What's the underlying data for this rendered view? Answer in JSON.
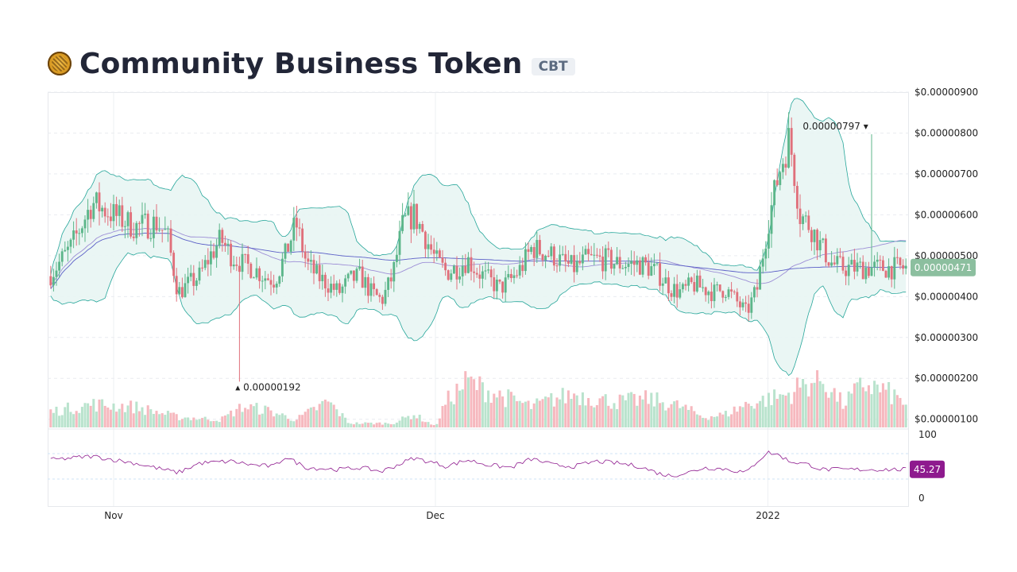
{
  "header": {
    "name": "Community Business Token",
    "symbol": "CBT",
    "logo_icon": "cbt-coin-logo-icon"
  },
  "colors": {
    "up": "#5cb68a",
    "down": "#e0707b",
    "band_line": "#26a69a",
    "band_fill": "#e8f5f3",
    "ma_long": "#5b5fc7",
    "ma_short": "#9d8fd6",
    "rsi_line": "#8e1a8e",
    "last_price_bg": "#8cbf9f",
    "rsi_badge_bg": "#8e1a8e"
  },
  "chart_data": {
    "type": "candlestick",
    "price_axis": {
      "ticks": [
        "$0.00000100",
        "$0.00000200",
        "$0.00000300",
        "$0.00000400",
        "$0.00000500",
        "$0.00000600",
        "$0.00000700",
        "$0.00000800",
        "$0.00000900"
      ],
      "tick_values": [
        1e-06,
        2e-06,
        3e-06,
        4e-06,
        5e-06,
        6e-06,
        7e-06,
        8e-06,
        9e-06
      ],
      "range": [
        8e-07,
        9e-06
      ]
    },
    "time_axis": {
      "ticks": [
        "Nov",
        "Dec",
        "2022"
      ],
      "tick_days": [
        7,
        37,
        68
      ],
      "range_days": [
        1,
        81
      ]
    },
    "last_price": "0.00000471",
    "last_price_value": 4.71e-06,
    "high_annotation": {
      "label": "0.00000797",
      "day": 77.5,
      "value": 7.97e-06
    },
    "low_annotation": {
      "label": "0.00000192",
      "day": 18.5,
      "value": 1.92e-06
    },
    "price_keypoints": [
      [
        1,
        4.5e-06
      ],
      [
        3,
        5.2e-06
      ],
      [
        5,
        6.3e-06
      ],
      [
        7,
        6e-06
      ],
      [
        9,
        5.7e-06
      ],
      [
        11,
        5.8e-06
      ],
      [
        12,
        5.5e-06
      ],
      [
        13,
        4.1e-06
      ],
      [
        14,
        4.3e-06
      ],
      [
        15,
        4.5e-06
      ],
      [
        16,
        5e-06
      ],
      [
        17,
        5.4e-06
      ],
      [
        18,
        5e-06
      ],
      [
        19,
        4.8e-06
      ],
      [
        20,
        4.7e-06
      ],
      [
        21,
        4.5e-06
      ],
      [
        22,
        4.4e-06
      ],
      [
        23,
        5e-06
      ],
      [
        24,
        5.8e-06
      ],
      [
        25,
        4.8e-06
      ],
      [
        26,
        4.5e-06
      ],
      [
        27,
        4.3e-06
      ],
      [
        28,
        4.1e-06
      ],
      [
        29,
        4.4e-06
      ],
      [
        30,
        4.5e-06
      ],
      [
        31,
        4.1e-06
      ],
      [
        32,
        3.9e-06
      ],
      [
        33,
        4.5e-06
      ],
      [
        34,
        5.8e-06
      ],
      [
        35,
        6e-06
      ],
      [
        36,
        5.5e-06
      ],
      [
        37,
        4.9e-06
      ],
      [
        38,
        4.6e-06
      ],
      [
        39,
        4.7e-06
      ],
      [
        40,
        4.9e-06
      ],
      [
        41,
        4.6e-06
      ],
      [
        42,
        4.4e-06
      ],
      [
        43,
        4.2e-06
      ],
      [
        44,
        4.4e-06
      ],
      [
        45,
        4.7e-06
      ],
      [
        46,
        5.2e-06
      ],
      [
        47,
        5.1e-06
      ],
      [
        48,
        5e-06
      ],
      [
        49,
        4.8e-06
      ],
      [
        50,
        4.7e-06
      ],
      [
        51,
        4.9e-06
      ],
      [
        52,
        4.9e-06
      ],
      [
        53,
        4.9e-06
      ],
      [
        54,
        4.8e-06
      ],
      [
        55,
        4.8e-06
      ],
      [
        56,
        4.8e-06
      ],
      [
        57,
        4.7e-06
      ],
      [
        58,
        4.5e-06
      ],
      [
        59,
        4.2e-06
      ],
      [
        60,
        4.1e-06
      ],
      [
        61,
        4.3e-06
      ],
      [
        62,
        4.2e-06
      ],
      [
        63,
        4.1e-06
      ],
      [
        64,
        4.2e-06
      ],
      [
        65,
        3.9e-06
      ],
      [
        66,
        3.6e-06
      ],
      [
        67,
        4.2e-06
      ],
      [
        68,
        5.8e-06
      ],
      [
        69,
        7e-06
      ],
      [
        70,
        7.9e-06
      ],
      [
        71,
        6e-06
      ],
      [
        72,
        5.7e-06
      ],
      [
        73,
        5.2e-06
      ],
      [
        74,
        4.8e-06
      ],
      [
        75,
        4.7e-06
      ]
    ],
    "volume_keypoints": [
      [
        1,
        0.3
      ],
      [
        5,
        0.45
      ],
      [
        9,
        0.4
      ],
      [
        13,
        0.2
      ],
      [
        17,
        0.15
      ],
      [
        19,
        0.4
      ],
      [
        21,
        0.35
      ],
      [
        24,
        0.15
      ],
      [
        27,
        0.5
      ],
      [
        29,
        0.08
      ],
      [
        33,
        0.08
      ],
      [
        35,
        0.25
      ],
      [
        37,
        0.02
      ],
      [
        38,
        0.5
      ],
      [
        40,
        0.9
      ],
      [
        42,
        0.7
      ],
      [
        44,
        0.55
      ],
      [
        46,
        0.4
      ],
      [
        48,
        0.55
      ],
      [
        50,
        0.65
      ],
      [
        52,
        0.55
      ],
      [
        54,
        0.5
      ],
      [
        57,
        0.55
      ],
      [
        60,
        0.4
      ],
      [
        62,
        0.2
      ],
      [
        64,
        0.25
      ],
      [
        66,
        0.45
      ],
      [
        68,
        0.55
      ],
      [
        70,
        0.65
      ],
      [
        71,
        0.8
      ],
      [
        73,
        0.95
      ],
      [
        75,
        0.45
      ],
      [
        77,
        0.85
      ],
      [
        79,
        0.7
      ],
      [
        81,
        0.45
      ]
    ],
    "rsi": {
      "axis_ticks": [
        "100",
        "0"
      ],
      "tick_values": [
        100,
        0
      ],
      "range": [
        0,
        100
      ],
      "bands": [
        70,
        30
      ],
      "last_value": "45.27",
      "last_value_num": 45.27,
      "keypoints": [
        [
          1,
          60
        ],
        [
          5,
          66
        ],
        [
          9,
          55
        ],
        [
          13,
          40
        ],
        [
          15,
          55
        ],
        [
          18,
          58
        ],
        [
          20,
          52
        ],
        [
          22,
          50
        ],
        [
          23,
          65
        ],
        [
          25,
          48
        ],
        [
          28,
          45
        ],
        [
          30,
          48
        ],
        [
          32,
          42
        ],
        [
          35,
          63
        ],
        [
          37,
          55
        ],
        [
          38,
          50
        ],
        [
          40,
          60
        ],
        [
          42,
          52
        ],
        [
          44,
          48
        ],
        [
          46,
          62
        ],
        [
          48,
          52
        ],
        [
          50,
          50
        ],
        [
          52,
          58
        ],
        [
          54,
          55
        ],
        [
          56,
          50
        ],
        [
          58,
          38
        ],
        [
          59,
          35
        ],
        [
          61,
          42
        ],
        [
          62,
          48
        ],
        [
          64,
          46
        ],
        [
          66,
          40
        ],
        [
          67,
          58
        ],
        [
          68,
          72
        ],
        [
          69,
          68
        ],
        [
          70,
          58
        ],
        [
          71,
          55
        ],
        [
          72,
          52
        ],
        [
          73,
          45
        ]
      ]
    },
    "series": [
      {
        "name": "",
        "kind": "candles"
      },
      {
        "name": "",
        "kind": "bollinger_bands"
      },
      {
        "name": "",
        "kind": "moving_average_long"
      },
      {
        "name": "",
        "kind": "moving_average_short"
      },
      {
        "name": "",
        "kind": "volume"
      },
      {
        "name": "",
        "kind": "rsi"
      }
    ],
    "grid": true
  }
}
